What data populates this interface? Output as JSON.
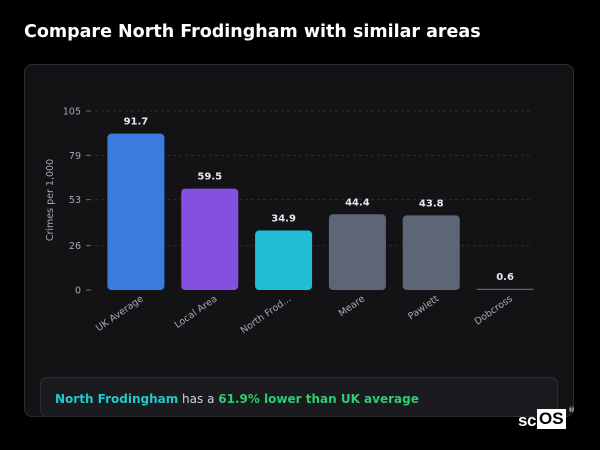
{
  "page": {
    "title": "Compare North Frodingham with similar areas"
  },
  "chart_data": {
    "type": "bar",
    "ylabel": "Crimes per 1,000",
    "xlabel": "",
    "ylim": [
      0,
      105
    ],
    "yticks": [
      0,
      26,
      53,
      79,
      105
    ],
    "grid": true,
    "categories": [
      "UK Average",
      "Local Area",
      "North Frod...",
      "Meare",
      "Pawlett",
      "Dobcross"
    ],
    "values": [
      91.7,
      59.5,
      34.9,
      44.4,
      43.8,
      0.6
    ],
    "value_labels": [
      "91.7",
      "59.5",
      "34.9",
      "44.4",
      "43.8",
      "0.6"
    ],
    "bar_colors": [
      "#3b7be0",
      "#8450e0",
      "#22bcd4",
      "#5c6677",
      "#5c6677",
      "#5c6677"
    ]
  },
  "summary": {
    "area_name": "North Frodingham",
    "middle_text": " has a ",
    "comparison": "61.9% lower than UK average"
  },
  "brand": {
    "prefix": "sc",
    "boxed": "OS",
    "mark": "®"
  },
  "colors": {
    "area_highlight": "#22c8c8",
    "comparison_highlight": "#2ecc71",
    "panel_background": "#131316"
  }
}
